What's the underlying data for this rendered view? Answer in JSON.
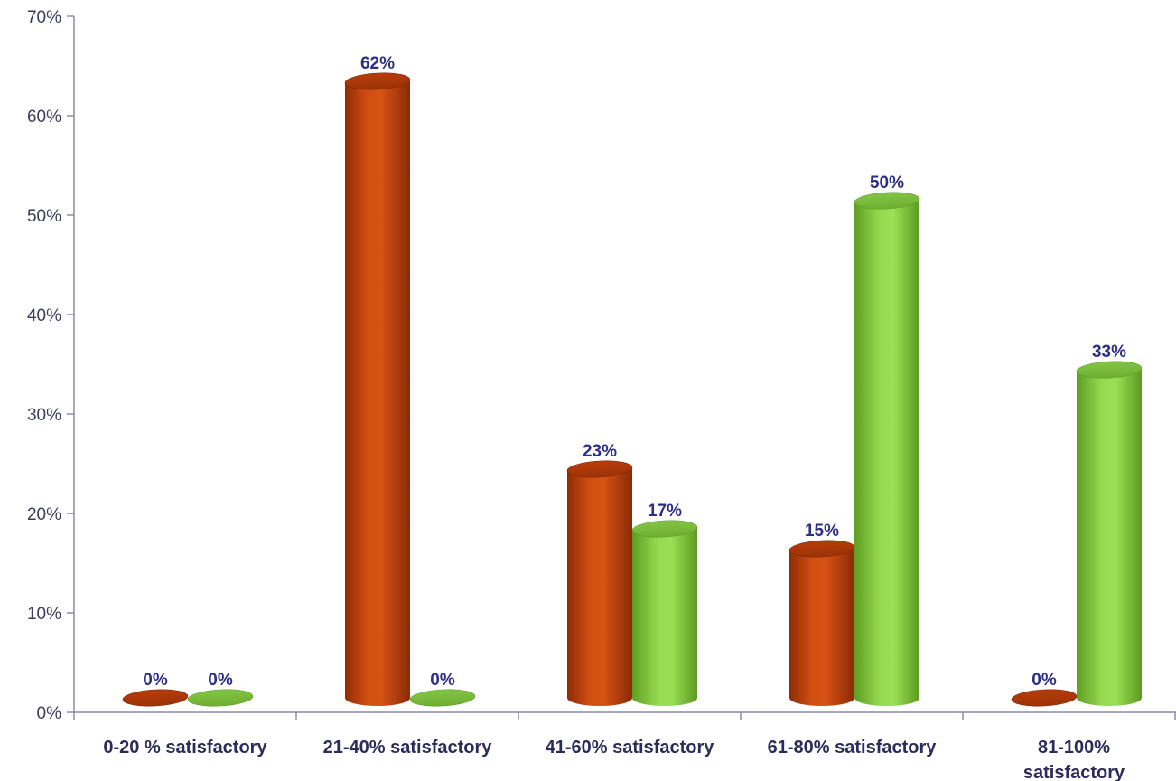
{
  "chart_data": {
    "type": "bar",
    "style": "3d-cylinder",
    "categories": [
      [
        "0-20 % satisfactory"
      ],
      [
        "21-40% satisfactory"
      ],
      [
        "41-60% satisfactory"
      ],
      [
        "61-80% satisfactory"
      ],
      [
        "81-100%",
        "satisfactory"
      ]
    ],
    "series": [
      {
        "color": "#c8460d",
        "values": [
          0,
          62,
          23,
          15,
          0
        ],
        "labels": [
          "0%",
          "62%",
          "23%",
          "15%",
          "0%"
        ]
      },
      {
        "color": "#8fd54a",
        "values": [
          0,
          0,
          17,
          50,
          33
        ],
        "labels": [
          "0%",
          "0%",
          "17%",
          "50%",
          "33%"
        ]
      }
    ],
    "ylim": [
      0,
      70
    ],
    "yticks": [
      0,
      10,
      20,
      30,
      40,
      50,
      60,
      70
    ],
    "ytick_labels": [
      "0%",
      "10%",
      "20%",
      "30%",
      "40%",
      "50%",
      "60%",
      "70%"
    ],
    "title": "",
    "xlabel": "",
    "ylabel": "",
    "legend": "none",
    "grid": false
  }
}
